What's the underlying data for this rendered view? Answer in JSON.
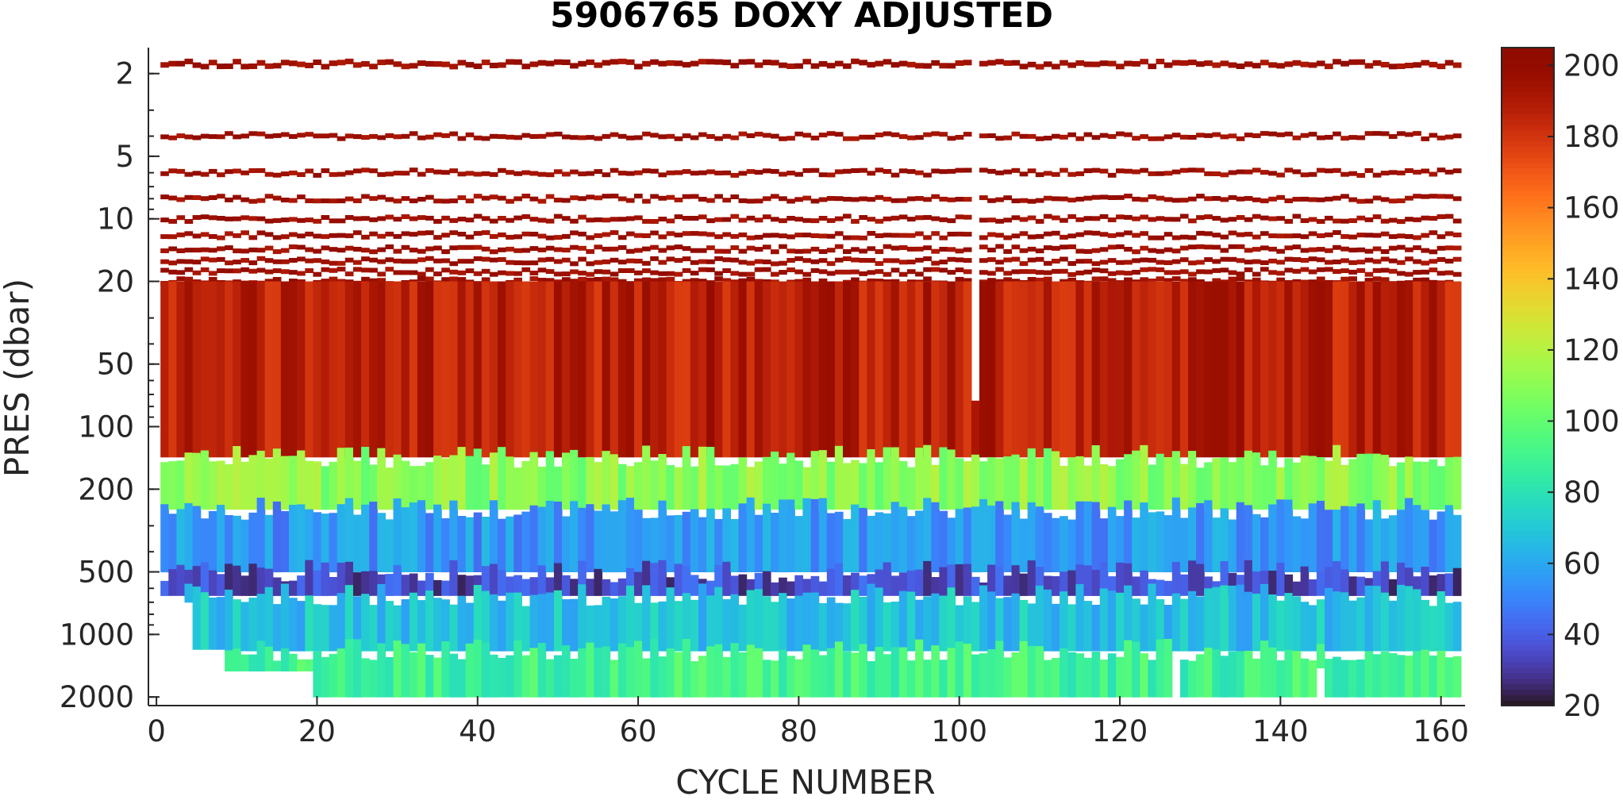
{
  "chart_data": {
    "type": "heatmap",
    "title": "5906765  DOXY ADJUSTED",
    "xlabel": "CYCLE NUMBER",
    "ylabel": "PRES (dbar)",
    "x_range": [
      -1,
      163
    ],
    "y_range": [
      1.5,
      2200
    ],
    "y_scale": "log",
    "y_reversed": true,
    "x_ticks": [
      "0",
      "20",
      "40",
      "60",
      "80",
      "100",
      "120",
      "140",
      "160"
    ],
    "y_ticks": [
      "2",
      "5",
      "10",
      "20",
      "50",
      "100",
      "200",
      "500",
      "1000",
      "2000"
    ],
    "colorbar": {
      "range": [
        20,
        205
      ],
      "ticks": [
        "20",
        "40",
        "60",
        "80",
        "100",
        "120",
        "140",
        "160",
        "180",
        "200"
      ],
      "colormap": "turbo"
    },
    "cycles": [
      1,
      162
    ],
    "surface_bins_dbar": [
      1.8,
      4.0,
      6.0,
      8.0,
      10.0,
      12.0,
      14.0,
      16.0,
      18.0,
      20.0
    ],
    "gaps": [
      {
        "cycle": 102,
        "pres_max": 75
      },
      {
        "cycle": 127,
        "pres_min": 1300
      },
      {
        "cycle": 145,
        "pres_min": 1450
      }
    ],
    "max_depth_profile": [
      {
        "cycle_from": 1,
        "cycle_to": 3,
        "pres": 650
      },
      {
        "cycle_from": 3,
        "cycle_to": 5,
        "pres": 700
      },
      {
        "cycle_from": 5,
        "cycle_to": 9,
        "pres": 1180
      },
      {
        "cycle_from": 9,
        "cycle_to": 20,
        "pres": 1500
      },
      {
        "cycle_from": 20,
        "cycle_to": 162,
        "pres": 2000
      }
    ],
    "layers_umol_kg": [
      {
        "pres_top": 1.8,
        "pres_bottom": 20,
        "doxy": 195
      },
      {
        "pres_top": 20,
        "pres_bottom": 140,
        "doxy": 188
      },
      {
        "pres_top": 140,
        "pres_bottom": 250,
        "doxy": 110
      },
      {
        "pres_top": 250,
        "pres_bottom": 500,
        "doxy": 55
      },
      {
        "pres_top": 500,
        "pres_bottom": 650,
        "doxy": 35
      },
      {
        "pres_top": 650,
        "pres_bottom": 1200,
        "doxy": 68
      },
      {
        "pres_top": 1200,
        "pres_bottom": 2000,
        "doxy": 90
      }
    ],
    "grid": false,
    "legend": "colorbar-right"
  }
}
